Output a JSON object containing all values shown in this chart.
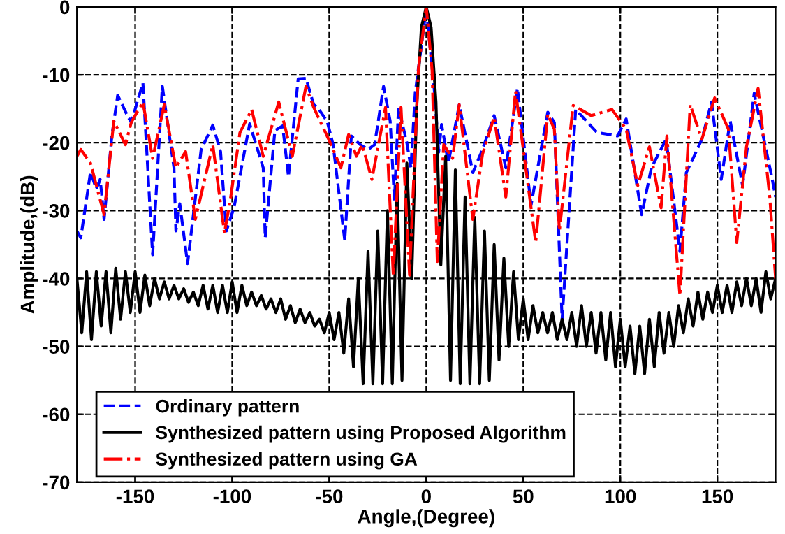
{
  "chart_data": {
    "type": "line",
    "xlabel": "Angle,(Degree)",
    "ylabel": "Amplitude,(dB)",
    "xlim": [
      -180,
      180
    ],
    "xticks": [
      -150,
      -100,
      -50,
      0,
      50,
      100,
      150
    ],
    "ylim": [
      -70,
      0
    ],
    "yticks": [
      -70,
      -60,
      -50,
      -40,
      -30,
      -20,
      -10,
      0
    ],
    "grid": true,
    "legend": "bottom left",
    "series": [
      {
        "name": "Ordinary pattern",
        "color": "#0000ff",
        "line_style": "dashed",
        "x": [
          -180,
          -178,
          -173,
          -170,
          -168,
          -166,
          -162,
          -159,
          -154,
          -152,
          -146,
          -141,
          -136,
          -130,
          -129,
          -127,
          -123,
          -116,
          -110,
          -106,
          -103,
          -99,
          -91,
          -84,
          -83,
          -78,
          -74,
          -71,
          -66,
          -62,
          -58,
          -56,
          -51,
          -48,
          -42,
          -38.6,
          -34,
          -30,
          -26.6,
          -22,
          -18.6,
          -16.4,
          -14.3,
          -10,
          -7.9,
          -5.7,
          0,
          4.3,
          6.4,
          7.9,
          11.4,
          17,
          24,
          29,
          35,
          41,
          47,
          54,
          62.6,
          66,
          70,
          77,
          88,
          98.6,
          103,
          111,
          116,
          123.6,
          130.7,
          134,
          138,
          142,
          147,
          152,
          156.6,
          163,
          169,
          178,
          180
        ],
        "values": [
          -33,
          -34,
          -24.3,
          -26.8,
          -25.4,
          -31.3,
          -19,
          -13,
          -16,
          -17,
          -11.2,
          -36.5,
          -11.7,
          -23.7,
          -33,
          -29,
          -37.8,
          -21,
          -17.4,
          -21.3,
          -33,
          -29.5,
          -17.2,
          -23.7,
          -34,
          -18.2,
          -17.5,
          -25,
          -10.6,
          -10.5,
          -14.4,
          -14.8,
          -16.9,
          -20.3,
          -34.4,
          -19,
          -20.3,
          -21,
          -20.3,
          -11.7,
          -16.8,
          -28.5,
          -14.8,
          -20,
          -23.7,
          -12.7,
          -0.2,
          -12.7,
          -21.4,
          -17.3,
          -23,
          -14.4,
          -24.4,
          -21,
          -16,
          -23.7,
          -12,
          -29.2,
          -15.5,
          -17,
          -46,
          -15.1,
          -18.5,
          -19,
          -16.5,
          -30.6,
          -23.7,
          -19.5,
          -36,
          -24.4,
          -22,
          -19.5,
          -14,
          -25.4,
          -16.8,
          -26.3,
          -12.7,
          -25,
          -28
        ]
      },
      {
        "name": "Synthesized pattern using Proposed Algorithm",
        "color": "#000000",
        "line_style": "solid",
        "x": [
          -180,
          -177.5,
          -175,
          -172.5,
          -170,
          -167.5,
          -165,
          -162.5,
          -160,
          -157.5,
          -155,
          -152.5,
          -150,
          -147.5,
          -145,
          -142.5,
          -140,
          -137.5,
          -135,
          -132.5,
          -130,
          -127.5,
          -125,
          -122.5,
          -120,
          -117.5,
          -115,
          -112.5,
          -110,
          -107.5,
          -105,
          -102.5,
          -100,
          -97.5,
          -95,
          -92.5,
          -90,
          -87.5,
          -85,
          -82.5,
          -80,
          -77.5,
          -75,
          -72.5,
          -70,
          -67.5,
          -65,
          -62.5,
          -60,
          -57.5,
          -55,
          -52.5,
          -50,
          -47.5,
          -45,
          -42.5,
          -40,
          -37.5,
          -35,
          -32.5,
          -30,
          -27.5,
          -25,
          -22.5,
          -20,
          -17.5,
          -15,
          -12.5,
          -10,
          -7.5,
          -5,
          -2.5,
          0,
          2.5,
          5,
          7.5,
          10,
          12.5,
          15,
          17.5,
          20,
          22.5,
          25,
          27.5,
          30,
          32.5,
          35,
          37.5,
          40,
          42.5,
          45,
          47.5,
          50,
          52.5,
          55,
          57.5,
          60,
          62.5,
          65,
          67.5,
          70,
          72.5,
          75,
          77.5,
          80,
          82.5,
          85,
          87.5,
          90,
          92.5,
          95,
          97.5,
          100,
          102.5,
          105,
          107.5,
          110,
          112.5,
          115,
          117.5,
          120,
          122.5,
          125,
          127.5,
          130,
          132.5,
          135,
          137.5,
          140,
          142.5,
          145,
          147.5,
          150,
          152.5,
          155,
          157.5,
          160,
          162.5,
          165,
          167.5,
          170,
          172.5,
          175,
          177.5,
          180
        ],
        "values": [
          -40,
          -48,
          -39,
          -49,
          -39,
          -47,
          -39,
          -48,
          -38.5,
          -46,
          -39,
          -45,
          -39,
          -45,
          -39.5,
          -44,
          -40,
          -43,
          -40.5,
          -43,
          -41,
          -43,
          -41.5,
          -43.5,
          -42,
          -44,
          -41,
          -44.5,
          -41,
          -45,
          -41,
          -45,
          -40.5,
          -45,
          -41,
          -44,
          -42,
          -44,
          -42.5,
          -44.5,
          -43,
          -45,
          -43,
          -46,
          -44,
          -46.5,
          -44.5,
          -46.5,
          -45,
          -47,
          -46,
          -48,
          -45,
          -49,
          -45,
          -51,
          -43,
          -53,
          -40,
          -55.5,
          -36,
          -55.5,
          -33,
          -55.5,
          -30,
          -55.5,
          -26,
          -55,
          -23,
          -40,
          -15,
          -3,
          0,
          -3,
          -14,
          -38,
          -22,
          -55,
          -24,
          -55.5,
          -28,
          -55.5,
          -31,
          -55.5,
          -33,
          -55,
          -35,
          -52,
          -37,
          -50,
          -39,
          -49,
          -43,
          -49,
          -44,
          -48,
          -45,
          -48,
          -45,
          -49,
          -46,
          -49,
          -45,
          -50,
          -44,
          -50,
          -45,
          -51,
          -45,
          -52,
          -45,
          -53,
          -46,
          -53,
          -47,
          -54,
          -47,
          -54,
          -46,
          -53,
          -45,
          -51,
          -45,
          -50,
          -44,
          -48,
          -43,
          -47,
          -42,
          -46,
          -42,
          -45,
          -41,
          -45,
          -41,
          -45,
          -40.5,
          -44,
          -40,
          -44,
          -40,
          -45,
          -39,
          -43,
          -40
        ]
      },
      {
        "name": "Synthesized pattern using GA",
        "color": "#ff0000",
        "line_style": "dashdot",
        "x": [
          -180,
          -178,
          -173,
          -166,
          -161,
          -155,
          -152,
          -146,
          -141,
          -135,
          -129,
          -124,
          -119,
          -110,
          -104,
          -101,
          -96,
          -90,
          -84,
          -76,
          -69,
          -62,
          -58,
          -49,
          -44,
          -40,
          -36,
          -33,
          -28,
          -21,
          -17,
          -13,
          -8.6,
          -4,
          0,
          3,
          5.7,
          9,
          13.6,
          17,
          24,
          29,
          35,
          41,
          46,
          56.4,
          62.6,
          66,
          68.6,
          75.7,
          85,
          95.7,
          103,
          109,
          115,
          121,
          124,
          130.7,
          136,
          142,
          148.6,
          155.7,
          160,
          165,
          171,
          177,
          180
        ],
        "values": [
          -22,
          -21,
          -23,
          -30.6,
          -16.8,
          -20.3,
          -17,
          -14,
          -22.3,
          -14.4,
          -23.7,
          -21.3,
          -31.3,
          -20.3,
          -33.3,
          -28.5,
          -18.5,
          -15.1,
          -22,
          -14,
          -22,
          -11.7,
          -14.8,
          -20.3,
          -23.7,
          -18.8,
          -22,
          -20.3,
          -25.4,
          -14.8,
          -39.5,
          -14.8,
          -39.5,
          -9,
          0,
          -9.3,
          -37.5,
          -20.3,
          -22.3,
          -14.4,
          -31.3,
          -21.7,
          -16.2,
          -28,
          -12.4,
          -34.7,
          -15.8,
          -18,
          -33,
          -14.5,
          -16,
          -15.1,
          -18,
          -26.3,
          -20.6,
          -29.6,
          -19,
          -42.5,
          -14.4,
          -19.5,
          -13.4,
          -18,
          -34.7,
          -20.6,
          -12,
          -28,
          -40
        ]
      }
    ]
  }
}
